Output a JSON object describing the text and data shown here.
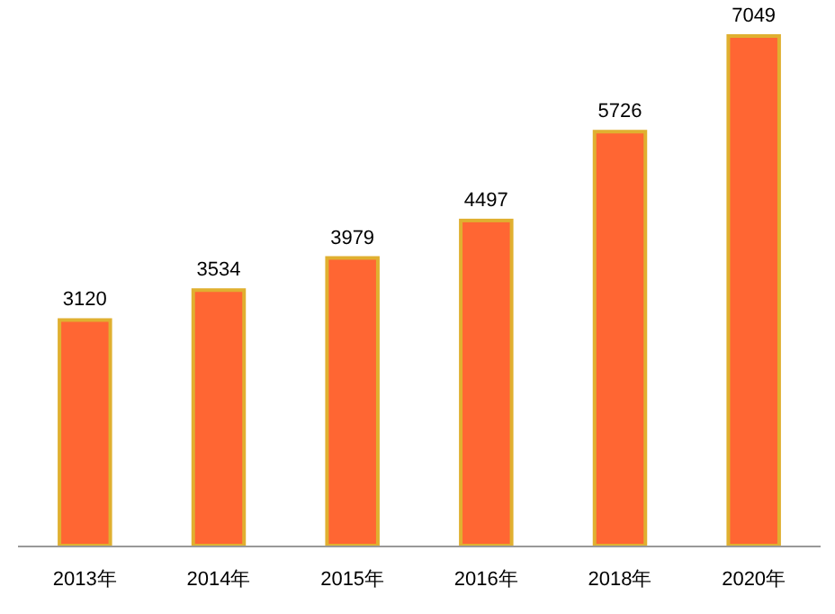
{
  "chart_data": {
    "type": "bar",
    "categories": [
      "2013年",
      "2014年",
      "2015年",
      "2016年",
      "2018年",
      "2020年"
    ],
    "values": [
      3120,
      3534,
      3979,
      4497,
      5726,
      7049
    ],
    "color": "#ff6633",
    "data_labels": true
  }
}
